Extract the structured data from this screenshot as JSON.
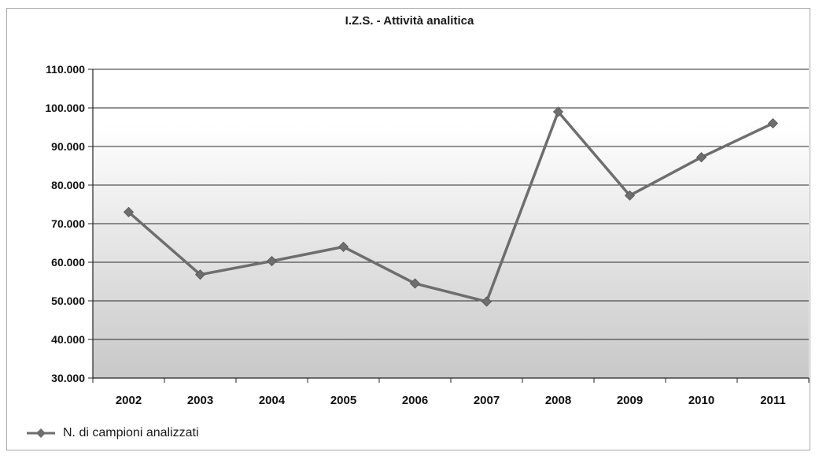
{
  "chart_data": {
    "type": "line",
    "title": "I.Z.S. - Attività analitica",
    "categories": [
      "2002",
      "2003",
      "2004",
      "2005",
      "2006",
      "2007",
      "2008",
      "2009",
      "2010",
      "2011"
    ],
    "series": [
      {
        "name": "N. di campioni analizzati",
        "values": [
          73000,
          56800,
          60300,
          64000,
          54500,
          49800,
          99000,
          77300,
          87200,
          96000
        ]
      }
    ],
    "ylim": [
      30000,
      110000
    ],
    "yticks": [
      30000,
      40000,
      50000,
      60000,
      70000,
      80000,
      90000,
      100000,
      110000
    ],
    "ytick_labels": [
      "30.000",
      "40.000",
      "50.000",
      "60.000",
      "70.000",
      "80.000",
      "90.000",
      "100.000",
      "110.000"
    ],
    "xlabel": "",
    "ylabel": "",
    "grid": true,
    "legend_position": "bottom-left",
    "colors": {
      "line": "#6e6e6e",
      "marker": "#6e6e6e",
      "grid": "#2a2a2a",
      "plot_top": "#ffffff",
      "plot_bottom": "#c8c8c8"
    }
  }
}
